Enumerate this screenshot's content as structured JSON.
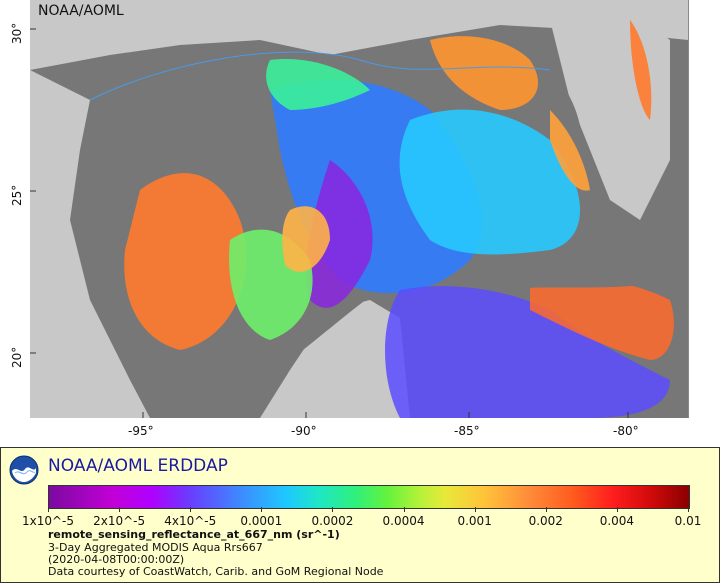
{
  "map": {
    "title": "NOAA/AOML",
    "lon_labels": [
      "-95°",
      "-90°",
      "-85°",
      "-80°"
    ],
    "lat_labels": [
      "30°",
      "25°",
      "20°"
    ],
    "colors": {
      "land": "#777777",
      "outside": "#c8c8c8",
      "coast": "#4a9ae8"
    }
  },
  "legend": {
    "title": "NOAA/AOML ERDDAP",
    "colorbar_labels": [
      "1x10^-5",
      "2x10^-5",
      "4x10^-5",
      "0.0001",
      "0.0002",
      "0.0004",
      "0.001",
      "0.002",
      "0.004",
      "0.01"
    ],
    "variable": "remote_sensing_reflectance_at_667_nm (sr^-1)",
    "lines": [
      "3-Day Aggregated MODIS Aqua Rrs667",
      "(2020-04-08T00:00:00Z)",
      "Data courtesy of CoastWatch, Carib. and GoM Regional Node"
    ]
  }
}
